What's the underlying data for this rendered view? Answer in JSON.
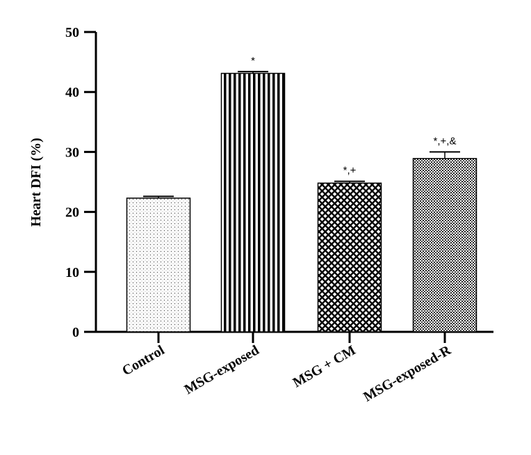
{
  "chart_data": {
    "type": "bar",
    "title": "",
    "xlabel": "",
    "ylabel": "Heart DFI (%)",
    "ylim": [
      0,
      50
    ],
    "yticks": [
      0,
      10,
      20,
      30,
      40,
      50
    ],
    "grid": false,
    "categories": [
      "Control",
      "MSG-exposed",
      "MSG + CM",
      "MSG-exposed-R"
    ],
    "values": [
      22.3,
      43.1,
      24.8,
      28.9
    ],
    "errors": [
      0.3,
      0.3,
      0.3,
      1.1
    ],
    "annotations": [
      "",
      "*",
      "*,+",
      "*,+,&"
    ],
    "patterns": [
      "dots",
      "vertical-stripes",
      "crosshatch",
      "fine-grid"
    ]
  }
}
